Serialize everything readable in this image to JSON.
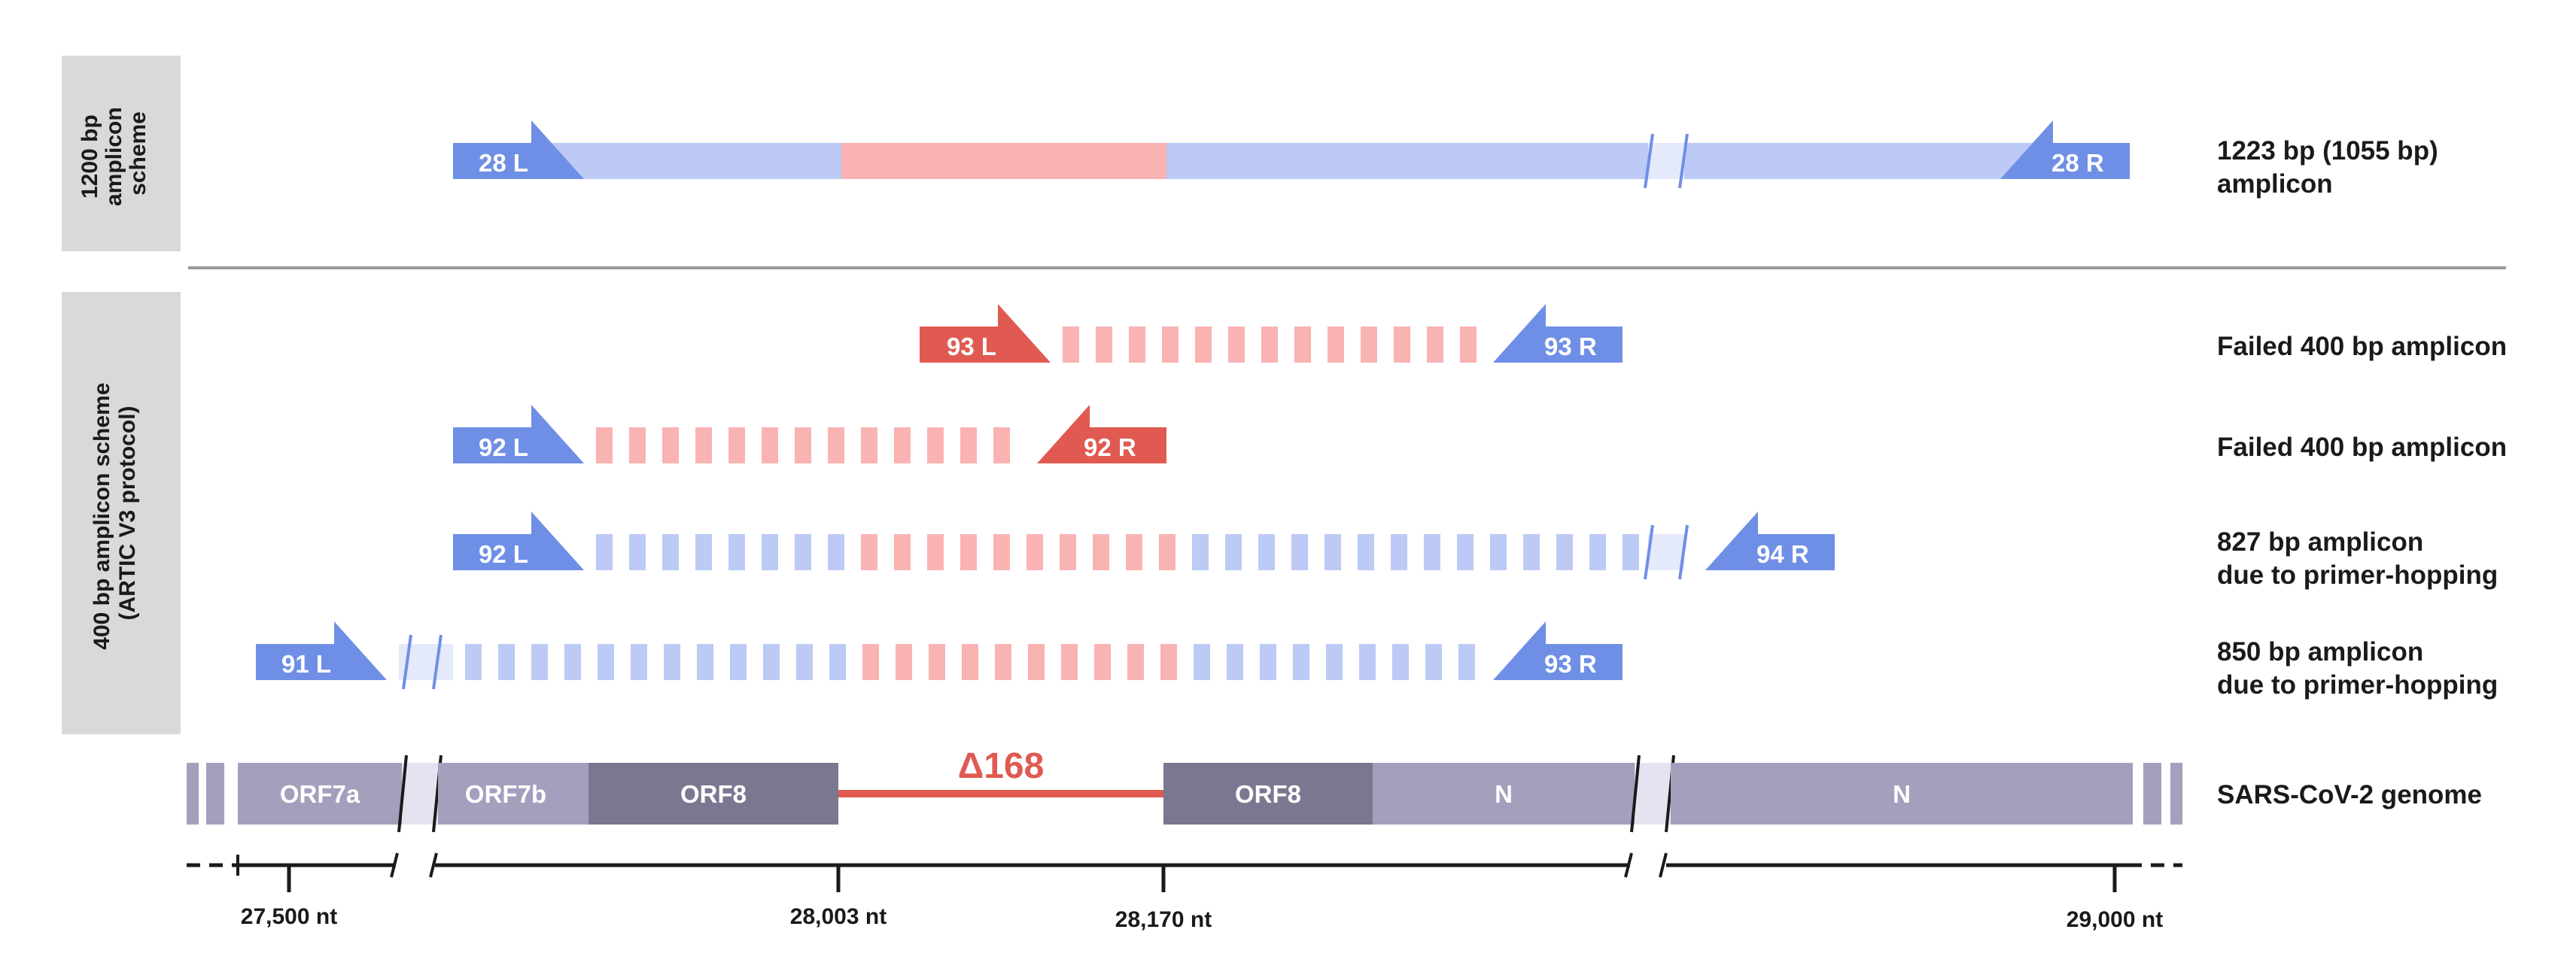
{
  "side_labels": {
    "top": [
      "1200 bp",
      "amplicon",
      "scheme"
    ],
    "bottom": [
      "400 bp amplicon scheme",
      "(ARTIC V3 protocol)"
    ]
  },
  "colors": {
    "blue_primer": "#6f8fe6",
    "blue_light": "#bccaf5",
    "red_primer": "#e05a52",
    "red_light": "#f9b3b3",
    "orf_light": "#a39fbd",
    "orf_dark": "#7a7791",
    "deletion_line": "#e05a52"
  },
  "amplicon_1200": {
    "left_primer": "28 L",
    "right_primer": "28 R",
    "label_line1": "1223 bp (1055 bp)",
    "label_line2": "amplicon"
  },
  "amplicons_400": [
    {
      "left_primer": "93 L",
      "right_primer": "93 R",
      "label_line1": "Failed 400 bp amplicon",
      "label_line2": ""
    },
    {
      "left_primer": "92 L",
      "right_primer": "92 R",
      "label_line1": "Failed 400 bp amplicon",
      "label_line2": ""
    },
    {
      "left_primer": "92 L",
      "right_primer": "94 R",
      "label_line1": "827 bp amplicon",
      "label_line2": "due to primer-hopping"
    },
    {
      "left_primer": "91 L",
      "right_primer": "93 R",
      "label_line1": "850 bp amplicon",
      "label_line2": "due to primer-hopping"
    }
  ],
  "genome": {
    "label": "SARS-CoV-2 genome",
    "segments": [
      "ORF7a",
      "ORF7b",
      "ORF8",
      "ORF8",
      "N",
      "N"
    ],
    "deletion": "Δ168"
  },
  "axis": {
    "ticks": [
      "27,500 nt",
      "28,003 nt",
      "28,170 nt",
      "29,000 nt"
    ]
  }
}
